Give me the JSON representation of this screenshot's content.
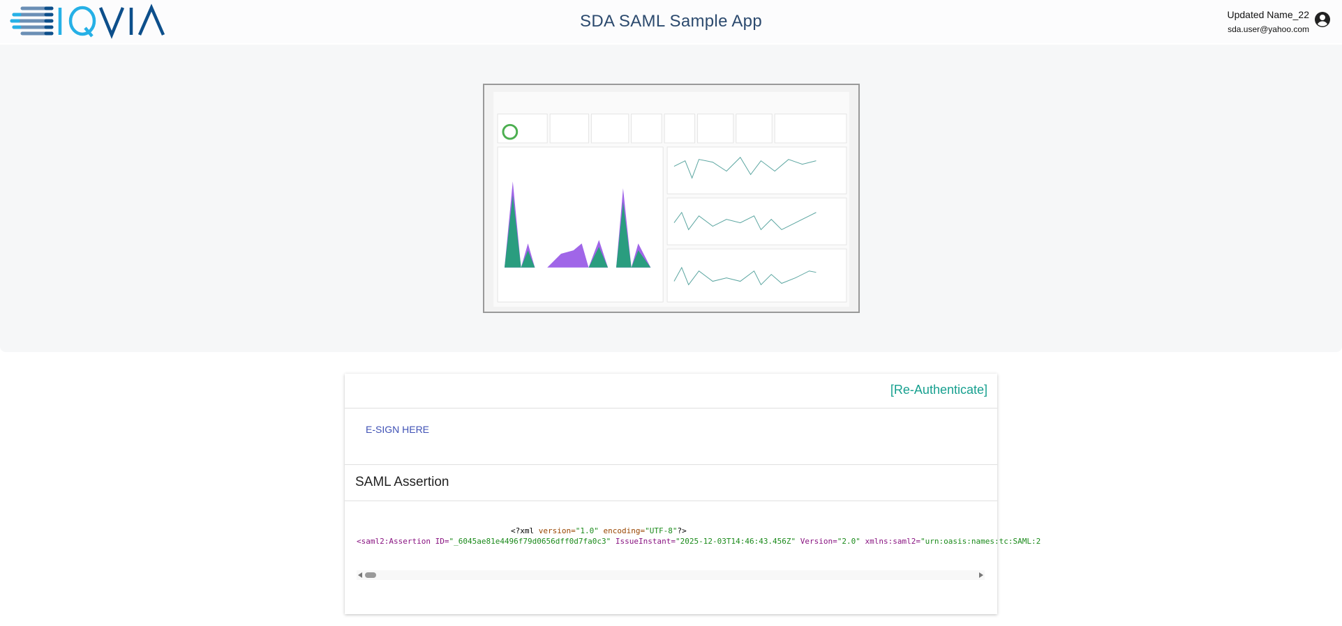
{
  "header": {
    "title": "SDA SAML Sample App",
    "logo_text": "IQVIA",
    "user_name": "Updated Name_22",
    "user_email": "sda.user@yahoo.com",
    "avatar_icon": "account-circle-icon"
  },
  "card": {
    "reauth_label": "[Re-Authenticate]",
    "esign_label": "E-SIGN HERE",
    "saml_title": "SAML Assertion",
    "xml_decl": {
      "open": "<?xml ",
      "a1": "version=",
      "v1": "\"1.0\"",
      "a2": " encoding=",
      "v2": "\"UTF-8\"",
      "close": "?>"
    },
    "assertion": {
      "tag": "<saml2:Assertion",
      "a1": " ID=",
      "v1": "\"_6045ae81e4496f79d0656dff0d7fa0c3\"",
      "a2": " IssueInstant=",
      "v2": "\"2025-12-03T14:46:43.456Z\"",
      "a3": " Version=",
      "v3": "\"2.0\"",
      "a4": " xmlns:saml2=",
      "v4": "\"urn:oasis:names:tc:SAML:2"
    }
  },
  "colors": {
    "accent_teal": "#17a08f",
    "link_blue": "#3f51b5",
    "title": "#2c4a6e"
  }
}
